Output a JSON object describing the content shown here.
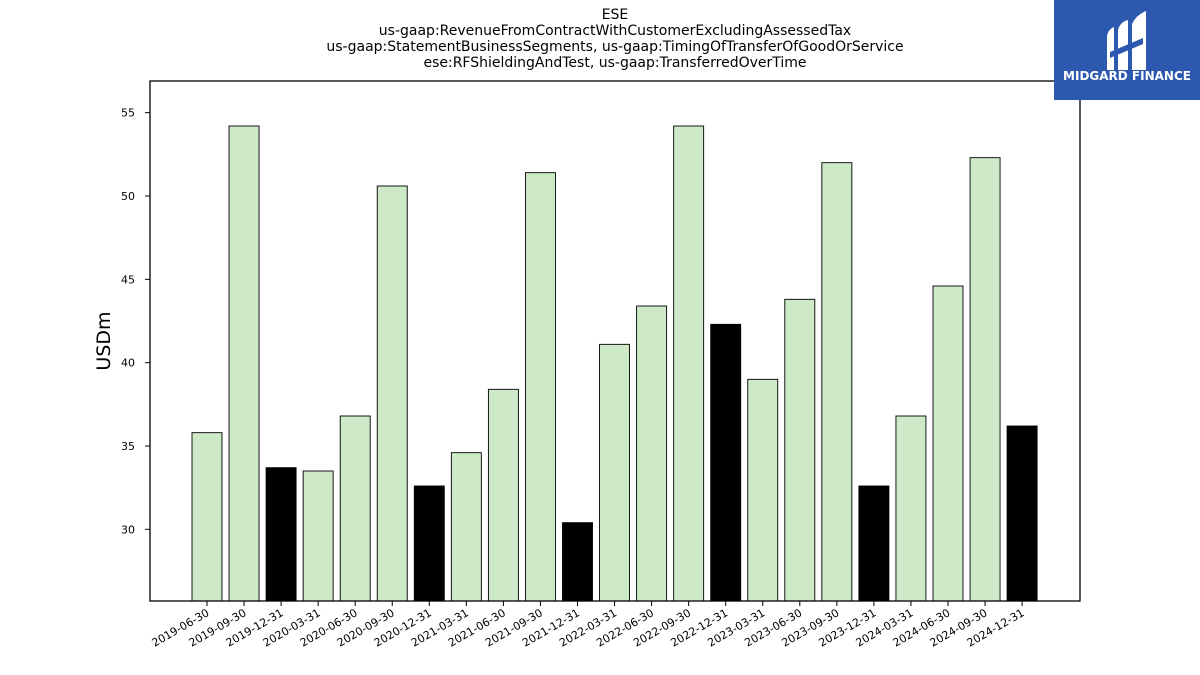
{
  "header": {
    "title_lines": [
      "ESE",
      "us-gaap:RevenueFromContractWithCustomerExcludingAssessedTax",
      "us-gaap:StatementBusinessSegments, us-gaap:TimingOfTransferOfGoodOrService",
      "ese:RFShieldingAndTest, us-gaap:TransferredOverTime"
    ]
  },
  "logo": {
    "text": "MIDGARD FINANCE",
    "background": "#2c58b0"
  },
  "chart_data": {
    "type": "bar",
    "ylabel": "USDm",
    "xlabel": "",
    "ylim": [
      25.7,
      56.9
    ],
    "yticks": [
      30,
      35,
      40,
      45,
      50,
      55
    ],
    "grid": false,
    "colors": {
      "quarter": "#cde9c7",
      "year_end": "#000000",
      "edge": "#000000"
    },
    "categories": [
      "2019-06-30",
      "2019-09-30",
      "2019-12-31",
      "2020-03-31",
      "2020-06-30",
      "2020-09-30",
      "2020-12-31",
      "2021-03-31",
      "2021-06-30",
      "2021-09-30",
      "2021-12-31",
      "2022-03-31",
      "2022-06-30",
      "2022-09-30",
      "2022-12-31",
      "2023-03-31",
      "2023-06-30",
      "2023-09-30",
      "2023-12-31",
      "2024-03-31",
      "2024-06-30",
      "2024-09-30",
      "2024-12-31"
    ],
    "values": [
      35.8,
      54.2,
      33.7,
      33.5,
      36.8,
      50.6,
      32.6,
      34.6,
      38.4,
      51.4,
      30.4,
      41.1,
      43.4,
      54.2,
      42.3,
      39.0,
      43.8,
      52.0,
      32.6,
      36.8,
      44.6,
      52.3,
      36.2
    ]
  }
}
